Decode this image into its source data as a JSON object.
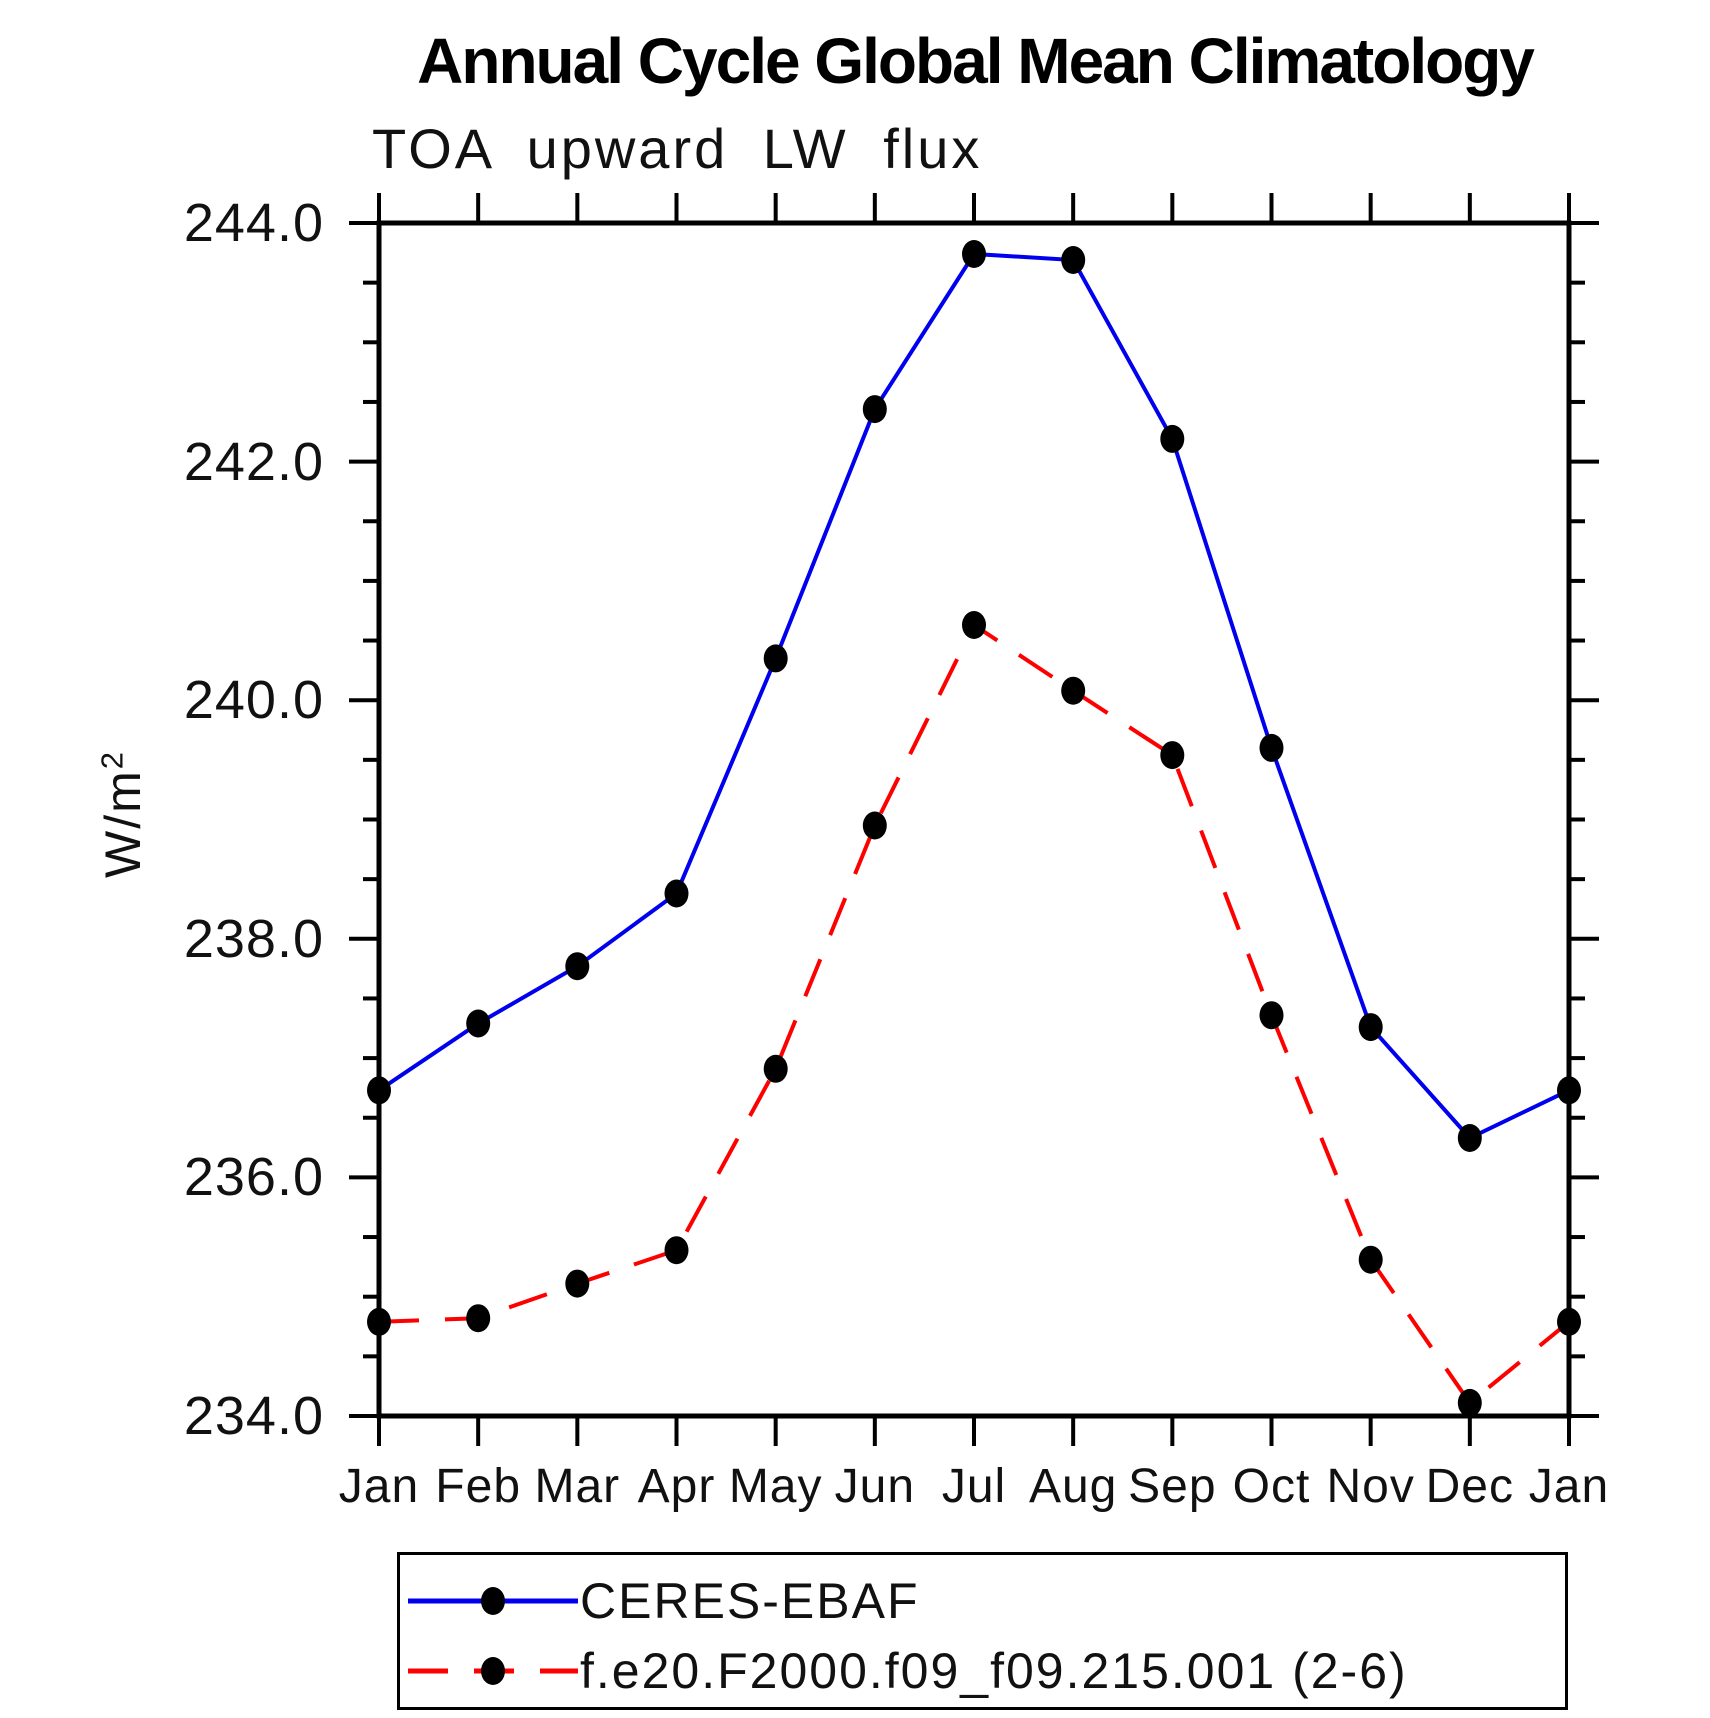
{
  "title": "Annual Cycle Global Mean Climatology",
  "subtitle": "TOA upward LW flux",
  "y_axis": {
    "label_base": "W/m",
    "label_sup": "2",
    "tick_labels": [
      "244.0",
      "242.0",
      "240.0",
      "238.0",
      "236.0",
      "234.0"
    ]
  },
  "x_axis": {
    "tick_labels": [
      "Jan",
      "Feb",
      "Mar",
      "Apr",
      "May",
      "Jun",
      "Jul",
      "Aug",
      "Sep",
      "Oct",
      "Nov",
      "Dec",
      "Jan"
    ]
  },
  "legend": {
    "entries": [
      {
        "label": "CERES-EBAF",
        "color": "#0000ee",
        "style": "solid"
      },
      {
        "label": "f.e20.F2000.f09_f09.215.001 (2-6)",
        "color": "#ff0000",
        "style": "dashed"
      }
    ]
  },
  "chart_data": {
    "type": "line",
    "title": "Annual Cycle Global Mean Climatology",
    "subtitle": "TOA upward LW flux",
    "ylabel": "W/m²",
    "x": [
      "Jan",
      "Feb",
      "Mar",
      "Apr",
      "May",
      "Jun",
      "Jul",
      "Aug",
      "Sep",
      "Oct",
      "Nov",
      "Dec",
      "Jan"
    ],
    "series": [
      {
        "name": "CERES-EBAF",
        "color": "#0000ee",
        "line_style": "solid",
        "marker": "filled-circle",
        "marker_color": "#000000",
        "values": [
          236.73,
          237.29,
          237.77,
          238.38,
          240.35,
          242.44,
          243.74,
          243.69,
          242.19,
          239.6,
          237.26,
          236.33,
          236.73
        ]
      },
      {
        "name": "f.e20.F2000.f09_f09.215.001 (2-6)",
        "color": "#ff0000",
        "line_style": "dashed",
        "marker": "filled-circle",
        "marker_color": "#000000",
        "values": [
          234.79,
          234.82,
          235.11,
          235.39,
          236.91,
          238.95,
          240.63,
          240.08,
          239.54,
          237.36,
          235.31,
          234.11,
          234.79
        ]
      }
    ],
    "ylim": [
      234.0,
      244.0
    ],
    "y_major_step": 2.0,
    "y_minor_step": 0.5,
    "grid": false,
    "legend_position": "bottom"
  }
}
